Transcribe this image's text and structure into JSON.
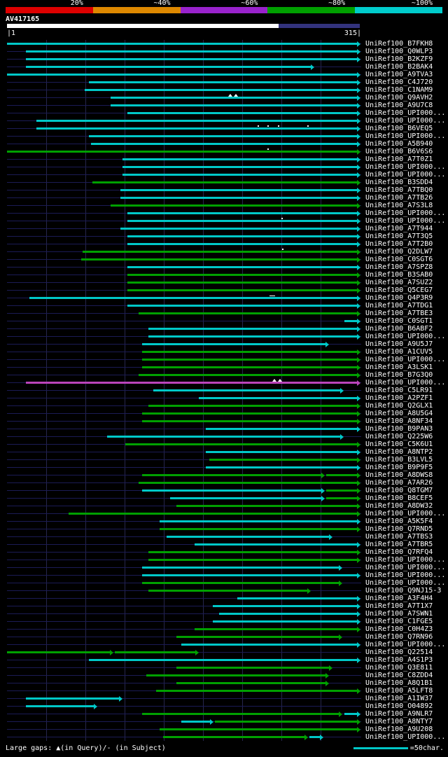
{
  "key": {
    "items": [
      {
        "label": "20%",
        "color": "#dd0000"
      },
      {
        "label": "~40%",
        "color": "#dd8800"
      },
      {
        "label": "~60%",
        "color": "#9922cc"
      },
      {
        "label": "~80%",
        "color": "#00a000"
      },
      {
        "label": "~100%",
        "color": "#00cccc"
      }
    ]
  },
  "query": {
    "name": "AV417165",
    "scale_start": "|1",
    "scale_end": "315|",
    "length": 315
  },
  "palette": {
    "cyan": "#00c8c8",
    "green": "#00a000",
    "magenta": "#bb44bb"
  },
  "footer": {
    "gaps_note": "Large gaps: ▲(in Query)/- (in Subject)",
    "scale_note": "=50char."
  },
  "chart_data": {
    "type": "bar",
    "orientation": "horizontal-span",
    "title": "AV417165",
    "x_range": [
      1,
      315
    ],
    "grid_divisions": 9,
    "rows": [
      {
        "label": "UniRef100_B7FKH8",
        "segments": [
          {
            "s": 1,
            "e": 315,
            "c": "cyan"
          }
        ]
      },
      {
        "label": "UniRef100_Q0WLP3",
        "segments": [
          {
            "s": 18,
            "e": 315,
            "c": "cyan"
          }
        ]
      },
      {
        "label": "UniRef100_B2KZF9",
        "segments": [
          {
            "s": 18,
            "e": 315,
            "c": "cyan"
          }
        ]
      },
      {
        "label": "UniRef100_B2BAK4",
        "segments": [
          {
            "s": 18,
            "e": 274,
            "c": "cyan"
          }
        ]
      },
      {
        "label": "UniRef100_A9TVA3",
        "segments": [
          {
            "s": 1,
            "e": 315,
            "c": "cyan"
          }
        ]
      },
      {
        "label": "UniRef100_C4J720",
        "segments": [
          {
            "s": 74,
            "e": 315,
            "c": "cyan"
          }
        ]
      },
      {
        "label": "UniRef100_C1NAM9",
        "segments": [
          {
            "s": 70,
            "e": 315,
            "c": "cyan"
          }
        ]
      },
      {
        "label": "UniRef100_Q9AVH2",
        "segments": [
          {
            "s": 93,
            "e": 315,
            "c": "cyan"
          }
        ],
        "markers": [
          {
            "p": 200,
            "t": "tri"
          },
          {
            "p": 205,
            "t": "tri"
          }
        ]
      },
      {
        "label": "UniRef100_A9U7C8",
        "segments": [
          {
            "s": 93,
            "e": 315,
            "c": "cyan"
          }
        ]
      },
      {
        "label": "UniRef100_UPI000...",
        "segments": [
          {
            "s": 108,
            "e": 315,
            "c": "cyan"
          }
        ]
      },
      {
        "label": "UniRef100_UPI000...",
        "segments": [
          {
            "s": 27,
            "e": 315,
            "c": "cyan"
          }
        ]
      },
      {
        "label": "UniRef100_B6VEQ5",
        "segments": [
          {
            "s": 27,
            "e": 315,
            "c": "cyan"
          }
        ],
        "markers": [
          {
            "p": 224,
            "t": "dot"
          },
          {
            "p": 233,
            "t": "dot"
          },
          {
            "p": 242,
            "t": "dot"
          },
          {
            "p": 268,
            "t": "dot"
          }
        ]
      },
      {
        "label": "UniRef100_UPI000...",
        "segments": [
          {
            "s": 74,
            "e": 315,
            "c": "cyan"
          }
        ]
      },
      {
        "label": "UniRef100_A5B940",
        "segments": [
          {
            "s": 76,
            "e": 315,
            "c": "cyan"
          }
        ]
      },
      {
        "label": "UniRef100_B6V6S6",
        "segments": [
          {
            "s": 1,
            "e": 315,
            "c": "green"
          }
        ],
        "markers": [
          {
            "p": 233,
            "t": "dot"
          }
        ]
      },
      {
        "label": "UniRef100_A7T0Z1",
        "segments": [
          {
            "s": 104,
            "e": 315,
            "c": "cyan"
          }
        ]
      },
      {
        "label": "UniRef100_UPI000...",
        "segments": [
          {
            "s": 104,
            "e": 315,
            "c": "cyan"
          }
        ]
      },
      {
        "label": "UniRef100_UPI000...",
        "segments": [
          {
            "s": 104,
            "e": 315,
            "c": "cyan"
          }
        ]
      },
      {
        "label": "UniRef100_B3SDD4",
        "segments": [
          {
            "s": 77,
            "e": 315,
            "c": "green"
          }
        ]
      },
      {
        "label": "UniRef100_A7TBQ0",
        "segments": [
          {
            "s": 102,
            "e": 315,
            "c": "cyan"
          }
        ]
      },
      {
        "label": "UniRef100_A7TB26",
        "segments": [
          {
            "s": 102,
            "e": 315,
            "c": "cyan"
          }
        ]
      },
      {
        "label": "UniRef100_A7S3L8",
        "segments": [
          {
            "s": 93,
            "e": 315,
            "c": "green"
          }
        ]
      },
      {
        "label": "UniRef100_UPI000...",
        "segments": [
          {
            "s": 108,
            "e": 315,
            "c": "cyan"
          }
        ]
      },
      {
        "label": "UniRef100_UPI000...",
        "segments": [
          {
            "s": 108,
            "e": 315,
            "c": "cyan"
          }
        ],
        "markers": [
          {
            "p": 245,
            "t": "dot"
          }
        ]
      },
      {
        "label": "UniRef100_A7T944",
        "segments": [
          {
            "s": 102,
            "e": 315,
            "c": "cyan"
          }
        ]
      },
      {
        "label": "UniRef100_A7T3Q5",
        "segments": [
          {
            "s": 108,
            "e": 315,
            "c": "cyan"
          }
        ]
      },
      {
        "label": "UniRef100_A7T2B0",
        "segments": [
          {
            "s": 108,
            "e": 315,
            "c": "cyan"
          }
        ]
      },
      {
        "label": "UniRef100_Q2DLW7",
        "segments": [
          {
            "s": 68,
            "e": 315,
            "c": "green"
          }
        ],
        "markers": [
          {
            "p": 246,
            "t": "dot"
          }
        ]
      },
      {
        "label": "UniRef100_C0SGT6",
        "segments": [
          {
            "s": 67,
            "e": 315,
            "c": "green"
          }
        ]
      },
      {
        "label": "UniRef100_A7SPZ8",
        "segments": [
          {
            "s": 108,
            "e": 315,
            "c": "cyan"
          }
        ]
      },
      {
        "label": "UniRef100_B3SAB0",
        "segments": [
          {
            "s": 108,
            "e": 315,
            "c": "green"
          }
        ]
      },
      {
        "label": "UniRef100_A7SUZ2",
        "segments": [
          {
            "s": 108,
            "e": 315,
            "c": "green"
          }
        ]
      },
      {
        "label": "UniRef100_Q5CEG7",
        "segments": [
          {
            "s": 108,
            "e": 315,
            "c": "green"
          }
        ]
      },
      {
        "label": "UniRef100_Q4P3R9",
        "segments": [
          {
            "s": 21,
            "e": 315,
            "c": "cyan"
          }
        ],
        "markers": [
          {
            "p": 237,
            "t": "dash"
          }
        ]
      },
      {
        "label": "UniRef100_A7TDG1",
        "segments": [
          {
            "s": 108,
            "e": 315,
            "c": "cyan"
          }
        ]
      },
      {
        "label": "UniRef100_A7TBE3",
        "segments": [
          {
            "s": 118,
            "e": 315,
            "c": "green"
          }
        ]
      },
      {
        "label": "UniRef100_C0SGT1",
        "segments": [
          {
            "s": 301,
            "e": 315,
            "c": "cyan"
          }
        ]
      },
      {
        "label": "UniRef100_B6ABF2",
        "segments": [
          {
            "s": 127,
            "e": 315,
            "c": "cyan"
          }
        ]
      },
      {
        "label": "UniRef100_UPI000...",
        "segments": [
          {
            "s": 127,
            "e": 315,
            "c": "cyan"
          }
        ]
      },
      {
        "label": "UniRef100_A9U5J7",
        "segments": [
          {
            "s": 121,
            "e": 287,
            "c": "cyan"
          }
        ]
      },
      {
        "label": "UniRef100_A1CUV5",
        "segments": [
          {
            "s": 121,
            "e": 315,
            "c": "green"
          }
        ]
      },
      {
        "label": "UniRef100_UPI000...",
        "segments": [
          {
            "s": 121,
            "e": 315,
            "c": "green"
          }
        ]
      },
      {
        "label": "UniRef100_A3LSK1",
        "segments": [
          {
            "s": 121,
            "e": 315,
            "c": "green"
          }
        ]
      },
      {
        "label": "UniRef100_B7G3Q0",
        "segments": [
          {
            "s": 118,
            "e": 315,
            "c": "green"
          }
        ]
      },
      {
        "label": "UniRef100_UPI000...",
        "segments": [
          {
            "s": 18,
            "e": 315,
            "c": "magenta"
          }
        ],
        "markers": [
          {
            "p": 239,
            "t": "tri"
          },
          {
            "p": 244,
            "t": "tri"
          }
        ]
      },
      {
        "label": "UniRef100_C5LR91",
        "segments": [
          {
            "s": 131,
            "e": 300,
            "c": "cyan"
          }
        ]
      },
      {
        "label": "UniRef100_A2PZF1",
        "segments": [
          {
            "s": 172,
            "e": 315,
            "c": "cyan"
          }
        ]
      },
      {
        "label": "UniRef100_Q2GLX1",
        "segments": [
          {
            "s": 127,
            "e": 315,
            "c": "green"
          }
        ]
      },
      {
        "label": "UniRef100_A8U5G4",
        "segments": [
          {
            "s": 121,
            "e": 315,
            "c": "green"
          }
        ]
      },
      {
        "label": "UniRef100_A8NF34",
        "segments": [
          {
            "s": 121,
            "e": 315,
            "c": "green"
          }
        ]
      },
      {
        "label": "UniRef100_B9PAN3",
        "segments": [
          {
            "s": 178,
            "e": 315,
            "c": "cyan"
          }
        ]
      },
      {
        "label": "UniRef100_Q225W6",
        "segments": [
          {
            "s": 90,
            "e": 300,
            "c": "cyan"
          }
        ]
      },
      {
        "label": "UniRef100_C5K6U1",
        "segments": [
          {
            "s": 106,
            "e": 315,
            "c": "green"
          }
        ]
      },
      {
        "label": "UniRef100_A8NTP2",
        "segments": [
          {
            "s": 178,
            "e": 315,
            "c": "cyan"
          }
        ]
      },
      {
        "label": "UniRef100_B3LVL5",
        "segments": [
          {
            "s": 181,
            "e": 315,
            "c": "green"
          }
        ]
      },
      {
        "label": "UniRef100_B9P9F5",
        "segments": [
          {
            "s": 178,
            "e": 315,
            "c": "cyan"
          }
        ]
      },
      {
        "label": "UniRef100_A8DWS8",
        "segments": [
          {
            "s": 121,
            "e": 283,
            "c": "green"
          },
          {
            "s": 285,
            "e": 315,
            "c": "green"
          }
        ]
      },
      {
        "label": "UniRef100_A7AR26",
        "segments": [
          {
            "s": 118,
            "e": 315,
            "c": "green"
          }
        ]
      },
      {
        "label": "UniRef100_Q8TGM7",
        "segments": [
          {
            "s": 121,
            "e": 283,
            "c": "cyan"
          },
          {
            "s": 285,
            "e": 315,
            "c": "green"
          }
        ]
      },
      {
        "label": "UniRef100_B8CEF5",
        "segments": [
          {
            "s": 146,
            "e": 283,
            "c": "cyan"
          },
          {
            "s": 285,
            "e": 315,
            "c": "green"
          }
        ]
      },
      {
        "label": "UniRef100_A8DW32",
        "segments": [
          {
            "s": 152,
            "e": 315,
            "c": "green"
          }
        ]
      },
      {
        "label": "UniRef100_UPI000...",
        "segments": [
          {
            "s": 56,
            "e": 315,
            "c": "green"
          }
        ]
      },
      {
        "label": "UniRef100_A5K5F4",
        "segments": [
          {
            "s": 137,
            "e": 315,
            "c": "cyan"
          }
        ]
      },
      {
        "label": "UniRef100_Q7RND5",
        "segments": [
          {
            "s": 137,
            "e": 315,
            "c": "green"
          }
        ]
      },
      {
        "label": "UniRef100_A7TBS3",
        "segments": [
          {
            "s": 143,
            "e": 290,
            "c": "cyan"
          }
        ]
      },
      {
        "label": "UniRef100_A7TBR5",
        "segments": [
          {
            "s": 168,
            "e": 315,
            "c": "cyan"
          }
        ]
      },
      {
        "label": "UniRef100_Q7RFQ4",
        "segments": [
          {
            "s": 127,
            "e": 315,
            "c": "green"
          }
        ]
      },
      {
        "label": "UniRef100_UPI000...",
        "segments": [
          {
            "s": 127,
            "e": 315,
            "c": "green"
          }
        ]
      },
      {
        "label": "UniRef100_UPI000...",
        "segments": [
          {
            "s": 121,
            "e": 299,
            "c": "cyan"
          }
        ]
      },
      {
        "label": "UniRef100_UPI000...",
        "segments": [
          {
            "s": 121,
            "e": 315,
            "c": "cyan"
          }
        ]
      },
      {
        "label": "UniRef100_UPI000...",
        "segments": [
          {
            "s": 121,
            "e": 299,
            "c": "green"
          }
        ]
      },
      {
        "label": "UniRef100_Q9NJ15-3",
        "segments": [
          {
            "s": 127,
            "e": 271,
            "c": "green"
          }
        ]
      },
      {
        "label": "UniRef100_A3F4H4",
        "segments": [
          {
            "s": 206,
            "e": 315,
            "c": "cyan"
          }
        ]
      },
      {
        "label": "UniRef100_A7T1X7",
        "segments": [
          {
            "s": 184,
            "e": 315,
            "c": "cyan"
          }
        ]
      },
      {
        "label": "UniRef100_A7SWN1",
        "segments": [
          {
            "s": 190,
            "e": 315,
            "c": "cyan"
          }
        ]
      },
      {
        "label": "UniRef100_C1FGE5",
        "segments": [
          {
            "s": 184,
            "e": 315,
            "c": "cyan"
          }
        ]
      },
      {
        "label": "UniRef100_C0H4Z3",
        "segments": [
          {
            "s": 168,
            "e": 315,
            "c": "green"
          }
        ]
      },
      {
        "label": "UniRef100_Q7RN96",
        "segments": [
          {
            "s": 152,
            "e": 299,
            "c": "green"
          }
        ]
      },
      {
        "label": "UniRef100_UPI000...",
        "segments": [
          {
            "s": 156,
            "e": 315,
            "c": "cyan"
          }
        ]
      },
      {
        "label": "UniRef100_Q22514",
        "segments": [
          {
            "s": 1,
            "e": 95,
            "c": "green"
          },
          {
            "s": 97,
            "e": 171,
            "c": "green"
          }
        ]
      },
      {
        "label": "UniRef100_A4S1P3",
        "segments": [
          {
            "s": 74,
            "e": 315,
            "c": "cyan"
          }
        ]
      },
      {
        "label": "UniRef100_Q3E811",
        "segments": [
          {
            "s": 152,
            "e": 290,
            "c": "green"
          }
        ]
      },
      {
        "label": "UniRef100_C8ZDD4",
        "segments": [
          {
            "s": 125,
            "e": 287,
            "c": "green"
          }
        ]
      },
      {
        "label": "UniRef100_A8Q1B1",
        "segments": [
          {
            "s": 152,
            "e": 287,
            "c": "green"
          }
        ]
      },
      {
        "label": "UniRef100_A5LFT8",
        "segments": [
          {
            "s": 134,
            "e": 315,
            "c": "green"
          }
        ]
      },
      {
        "label": "UniRef100_A1IW37",
        "segments": [
          {
            "s": 18,
            "e": 103,
            "c": "cyan"
          }
        ]
      },
      {
        "label": "UniRef100_O04892",
        "segments": [
          {
            "s": 18,
            "e": 81,
            "c": "cyan"
          }
        ]
      },
      {
        "label": "UniRef100_A9NLR7",
        "segments": [
          {
            "s": 121,
            "e": 299,
            "c": "green"
          },
          {
            "s": 301,
            "e": 315,
            "c": "cyan"
          }
        ]
      },
      {
        "label": "UniRef100_A8NTY7",
        "segments": [
          {
            "s": 156,
            "e": 184,
            "c": "cyan"
          },
          {
            "s": 186,
            "e": 315,
            "c": "green"
          }
        ]
      },
      {
        "label": "UniRef100_A9U208",
        "segments": [
          {
            "s": 137,
            "e": 315,
            "c": "green"
          }
        ]
      },
      {
        "label": "UniRef100_UPI000...",
        "segments": [
          {
            "s": 140,
            "e": 268,
            "c": "green"
          },
          {
            "s": 270,
            "e": 282,
            "c": "cyan"
          }
        ]
      }
    ]
  }
}
